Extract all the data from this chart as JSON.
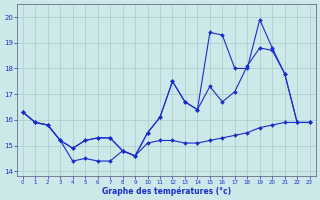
{
  "xlabel": "Graphe des températures (°c)",
  "xlim": [
    -0.5,
    23.5
  ],
  "ylim": [
    13.8,
    20.5
  ],
  "yticks": [
    14,
    15,
    16,
    17,
    18,
    19,
    20
  ],
  "xticks": [
    0,
    1,
    2,
    3,
    4,
    5,
    6,
    7,
    8,
    9,
    10,
    11,
    12,
    13,
    14,
    15,
    16,
    17,
    18,
    19,
    20,
    21,
    22,
    23
  ],
  "bg_color": "#cce8e8",
  "grid_color": "#aacccc",
  "line_color": "#1a2ecc",
  "series1_y": [
    16.3,
    15.9,
    15.8,
    15.2,
    14.4,
    14.5,
    14.4,
    14.4,
    14.8,
    14.6,
    15.1,
    15.2,
    15.2,
    15.1,
    15.1,
    15.2,
    15.3,
    15.4,
    15.5,
    15.7,
    15.8,
    15.9,
    15.9,
    15.9
  ],
  "series2_y": [
    16.3,
    15.9,
    15.8,
    15.2,
    14.9,
    15.2,
    15.3,
    15.3,
    14.8,
    14.6,
    15.5,
    16.1,
    17.5,
    16.7,
    16.4,
    17.3,
    16.7,
    17.1,
    18.1,
    18.8,
    18.7,
    17.8,
    15.9,
    15.9
  ],
  "series3_y": [
    16.3,
    15.9,
    15.8,
    15.2,
    14.9,
    15.2,
    15.3,
    15.3,
    14.8,
    14.6,
    15.5,
    16.1,
    17.5,
    16.7,
    16.4,
    19.4,
    19.3,
    18.0,
    18.0,
    19.9,
    18.8,
    17.8,
    15.9,
    15.9
  ]
}
